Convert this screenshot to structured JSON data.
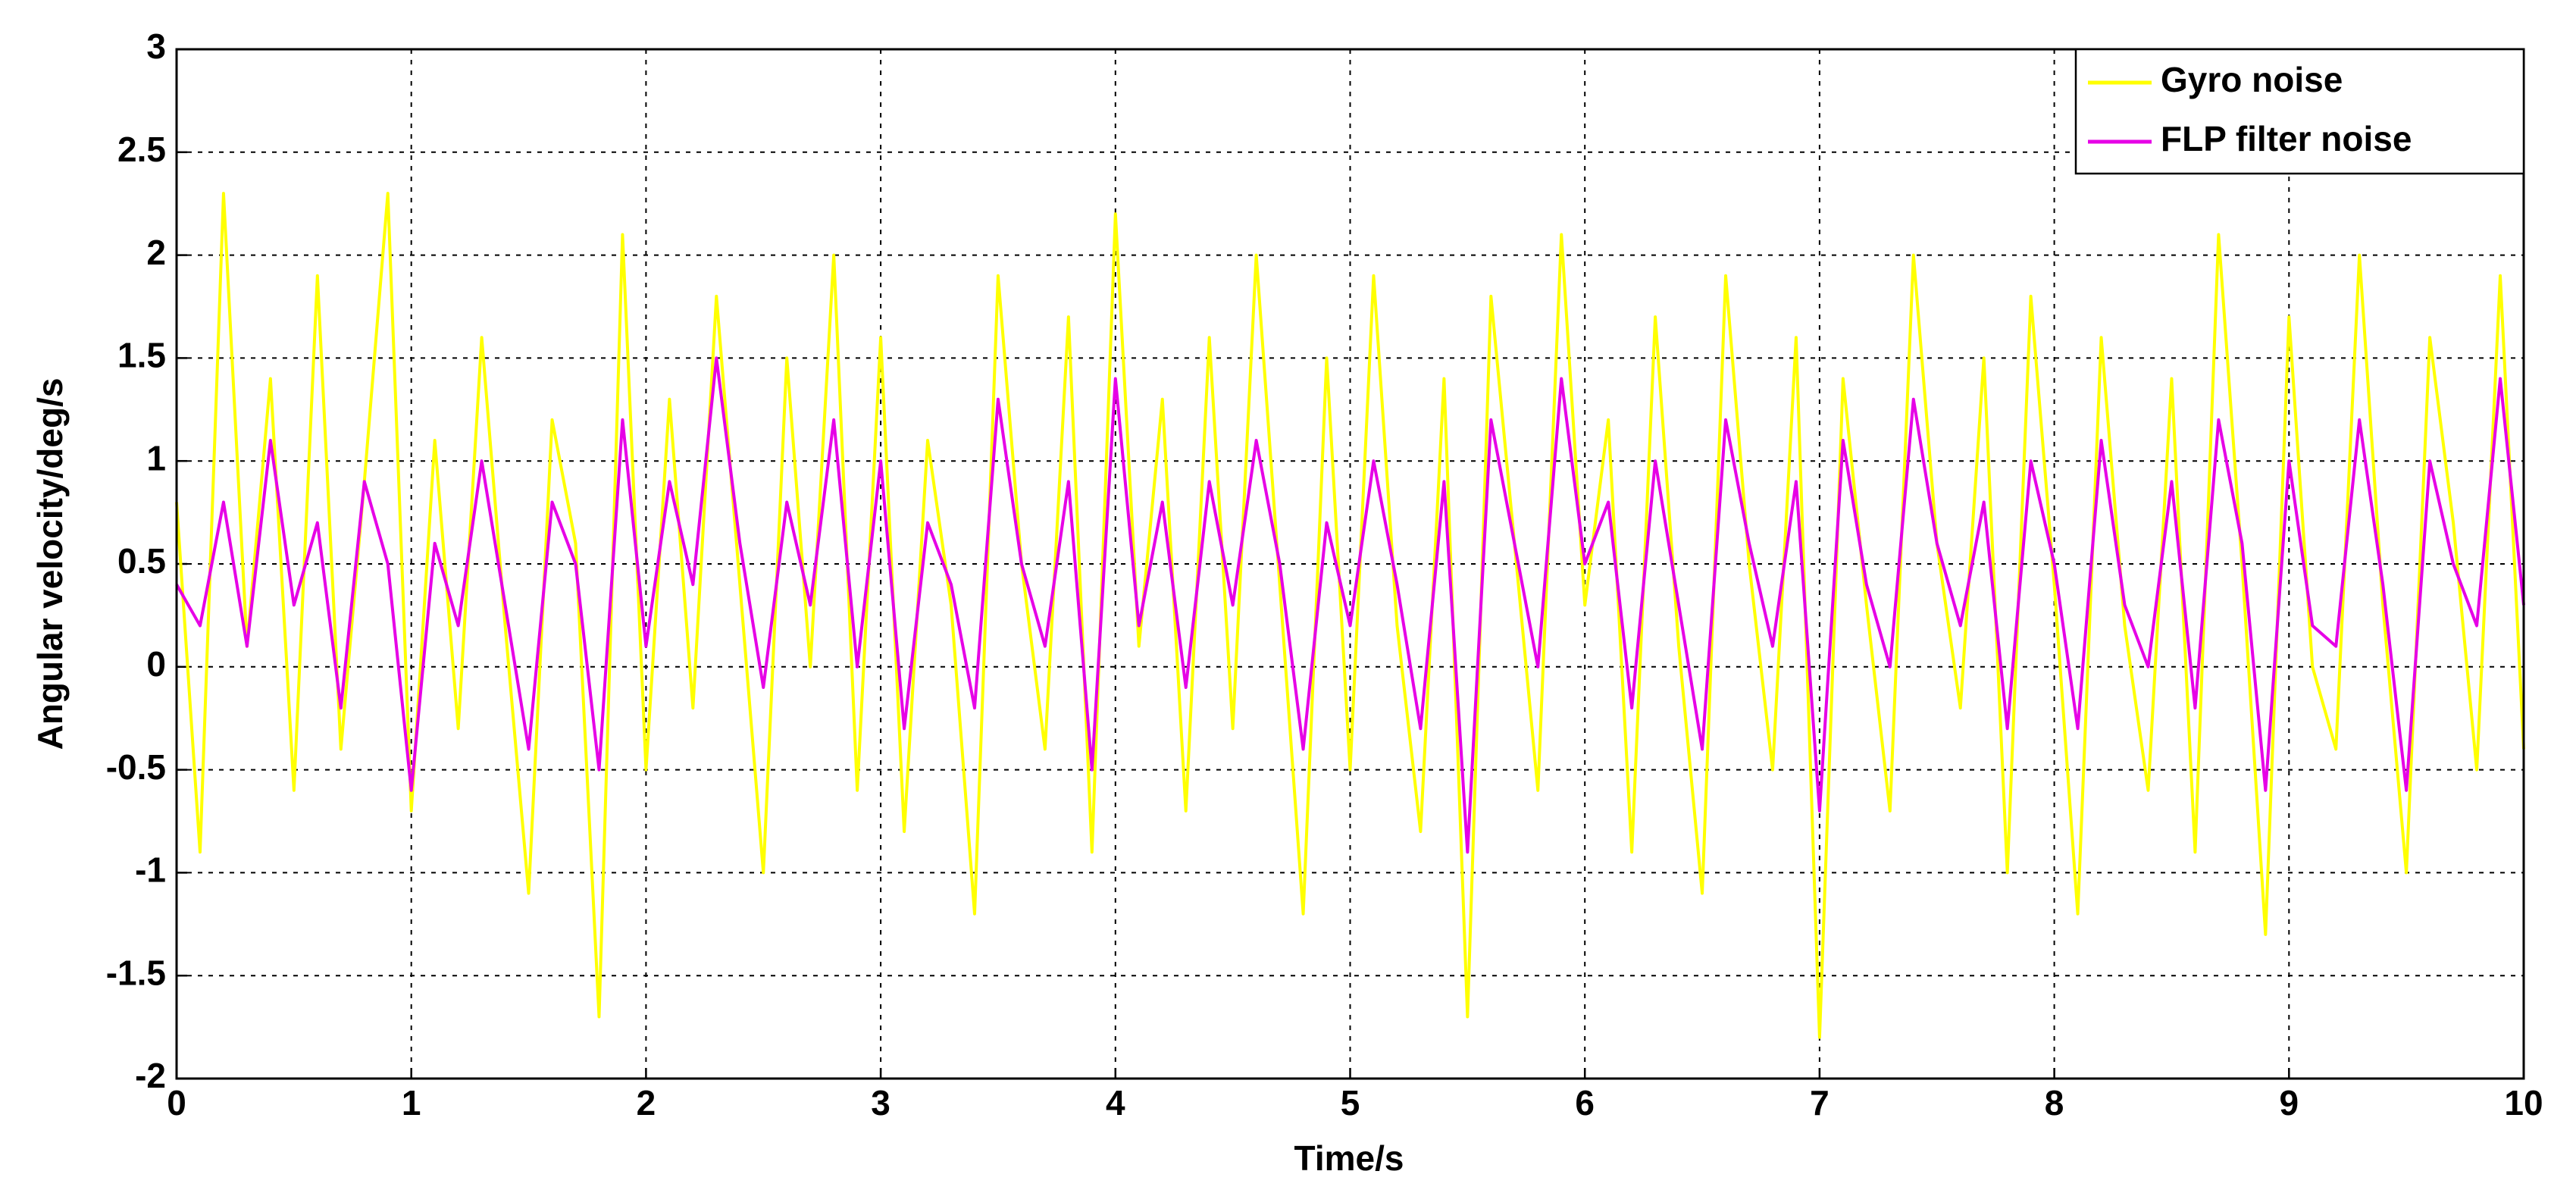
{
  "chart_data": {
    "type": "line",
    "xlabel": "Time/s",
    "ylabel": "Angular velocity/deg/s",
    "xlim": [
      0,
      10
    ],
    "xticks": [
      0,
      1,
      2,
      3,
      4,
      5,
      6,
      7,
      8,
      9,
      10
    ],
    "ylim": [
      -2,
      3
    ],
    "yticks": [
      -2,
      -1.5,
      -1,
      -0.5,
      0,
      0.5,
      1,
      1.5,
      2,
      2.5,
      3
    ],
    "grid": true,
    "legend": "upper right",
    "x": [
      0,
      0.1,
      0.2,
      0.3,
      0.4,
      0.5,
      0.6,
      0.7,
      0.8,
      0.9,
      1,
      1.1,
      1.2,
      1.3,
      1.4,
      1.5,
      1.6,
      1.7,
      1.8,
      1.9,
      2,
      2.1,
      2.2,
      2.3,
      2.4,
      2.5,
      2.6,
      2.7,
      2.8,
      2.9,
      3,
      3.1,
      3.2,
      3.3,
      3.4,
      3.5,
      3.6,
      3.7,
      3.8,
      3.9,
      4,
      4.1,
      4.2,
      4.3,
      4.4,
      4.5,
      4.6,
      4.7,
      4.8,
      4.9,
      5,
      5.1,
      5.2,
      5.3,
      5.4,
      5.5,
      5.6,
      5.7,
      5.8,
      5.9,
      6,
      6.1,
      6.2,
      6.3,
      6.4,
      6.5,
      6.6,
      6.7,
      6.8,
      6.9,
      7,
      7.1,
      7.2,
      7.3,
      7.4,
      7.5,
      7.6,
      7.7,
      7.8,
      7.9,
      8,
      8.1,
      8.2,
      8.3,
      8.4,
      8.5,
      8.6,
      8.7,
      8.8,
      8.9,
      9,
      9.1,
      9.2,
      9.3,
      9.4,
      9.5,
      9.6,
      9.7,
      9.8,
      9.9,
      10
    ],
    "series": [
      {
        "name": "Gyro noise",
        "color": "#ffff00",
        "values": [
          0.8,
          -0.9,
          2.3,
          0.1,
          1.4,
          -0.6,
          1.9,
          -0.4,
          0.9,
          2.3,
          -0.7,
          1.1,
          -0.3,
          1.6,
          0.2,
          -1.1,
          1.2,
          0.6,
          -1.7,
          2.1,
          -0.5,
          1.3,
          -0.2,
          1.8,
          0.4,
          -1.0,
          1.5,
          0.0,
          2.0,
          -0.6,
          1.6,
          -0.8,
          1.1,
          0.3,
          -1.2,
          1.9,
          0.5,
          -0.4,
          1.7,
          -0.9,
          2.2,
          0.1,
          1.3,
          -0.7,
          1.6,
          -0.3,
          2.0,
          0.4,
          -1.2,
          1.5,
          -0.5,
          1.9,
          0.2,
          -0.8,
          1.4,
          -1.7,
          1.8,
          0.6,
          -0.6,
          2.1,
          0.3,
          1.2,
          -0.9,
          1.7,
          0.1,
          -1.1,
          1.9,
          0.5,
          -0.5,
          1.6,
          -1.8,
          1.4,
          0.3,
          -0.7,
          2.0,
          0.6,
          -0.2,
          1.5,
          -1.0,
          1.8,
          0.4,
          -1.2,
          1.6,
          0.2,
          -0.6,
          1.4,
          -0.9,
          2.1,
          0.5,
          -1.3,
          1.7,
          0.0,
          -0.4,
          2.0,
          0.3,
          -1.0,
          1.6,
          0.7,
          -0.5,
          1.9,
          -0.4
        ]
      },
      {
        "name": "FLP filter noise",
        "color": "#e600e6",
        "values": [
          0.4,
          0.2,
          0.8,
          0.1,
          1.1,
          0.3,
          0.7,
          -0.2,
          0.9,
          0.5,
          -0.6,
          0.6,
          0.2,
          1.0,
          0.3,
          -0.4,
          0.8,
          0.5,
          -0.5,
          1.2,
          0.1,
          0.9,
          0.4,
          1.5,
          0.6,
          -0.1,
          0.8,
          0.3,
          1.2,
          0.0,
          1.0,
          -0.3,
          0.7,
          0.4,
          -0.2,
          1.3,
          0.5,
          0.1,
          0.9,
          -0.5,
          1.4,
          0.2,
          0.8,
          -0.1,
          0.9,
          0.3,
          1.1,
          0.5,
          -0.4,
          0.7,
          0.2,
          1.0,
          0.4,
          -0.3,
          0.9,
          -0.9,
          1.2,
          0.6,
          0.0,
          1.4,
          0.5,
          0.8,
          -0.2,
          1.0,
          0.3,
          -0.4,
          1.2,
          0.6,
          0.1,
          0.9,
          -0.7,
          1.1,
          0.4,
          0.0,
          1.3,
          0.6,
          0.2,
          0.8,
          -0.3,
          1.0,
          0.5,
          -0.3,
          1.1,
          0.3,
          0.0,
          0.9,
          -0.2,
          1.2,
          0.6,
          -0.6,
          1.0,
          0.2,
          0.1,
          1.2,
          0.4,
          -0.6,
          1.0,
          0.5,
          0.2,
          1.4,
          0.3
        ]
      }
    ]
  }
}
